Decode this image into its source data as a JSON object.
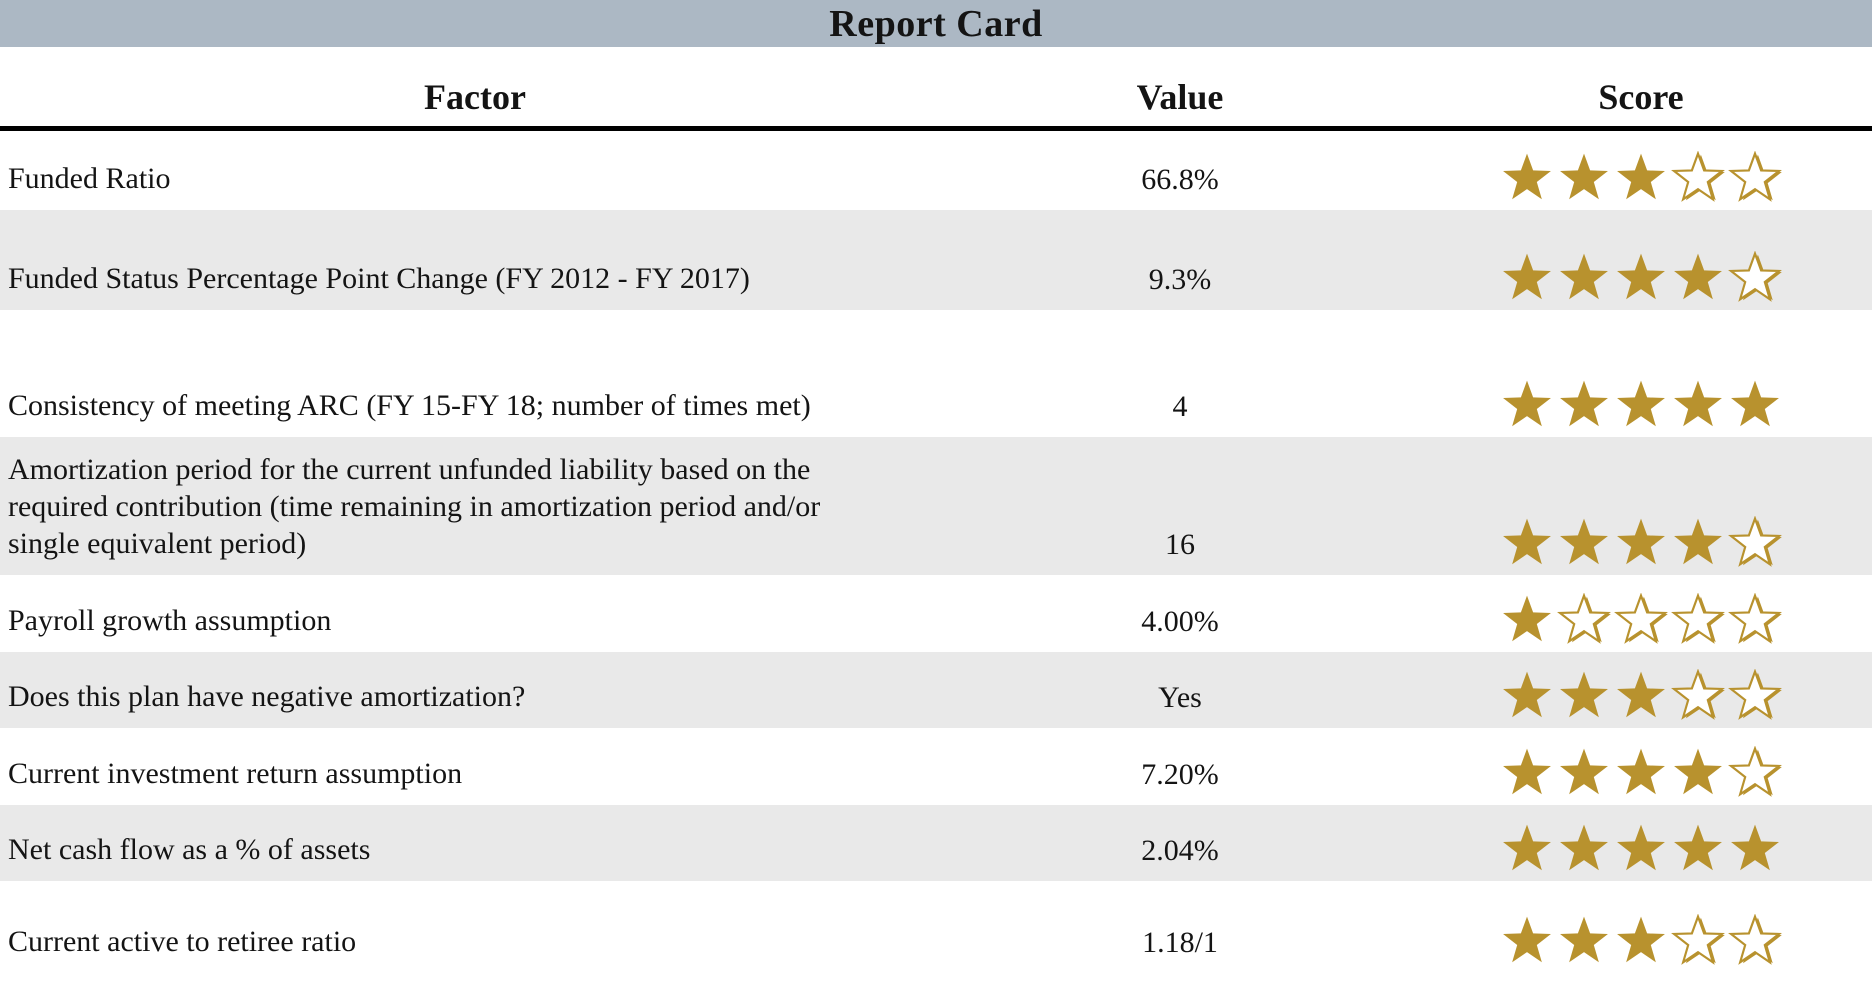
{
  "title": "Report Card",
  "colors": {
    "title_band": "#acb8c4",
    "alt_row": "#e9e9e9",
    "star_gold": "#b8922e",
    "header_rule": "#000000",
    "text": "#141414"
  },
  "chart_data": {
    "type": "table",
    "title": "Report Card",
    "columns": [
      "Factor",
      "Value",
      "Score"
    ],
    "score_scale": {
      "max": 5,
      "symbol": "star",
      "filled_color": "#b8922e"
    },
    "rows": [
      {
        "factor": "Funded Ratio",
        "value": "66.8%",
        "score": 3
      },
      {
        "factor": "Funded Status Percentage Point Change (FY 2012 - FY 2017)",
        "value": "9.3%",
        "score": 4
      },
      {
        "factor": "Consistency of meeting ARC (FY 15-FY 18; number of times met)",
        "value": "4",
        "score": 5
      },
      {
        "factor": "Amortization period for the current unfunded liability based on the required contribution (time remaining in amortization period and/or single equivalent period)",
        "value": "16",
        "score": 4
      },
      {
        "factor": "Payroll growth assumption",
        "value": "4.00%",
        "score": 1
      },
      {
        "factor": "Does this plan have negative amortization?",
        "value": "Yes",
        "score": 3
      },
      {
        "factor": "Current investment return assumption",
        "value": "7.20%",
        "score": 4
      },
      {
        "factor": "Net cash flow as a % of assets",
        "value": "2.04%",
        "score": 5
      },
      {
        "factor": "Current active to retiree ratio",
        "value": "1.18/1",
        "score": 3
      }
    ]
  }
}
